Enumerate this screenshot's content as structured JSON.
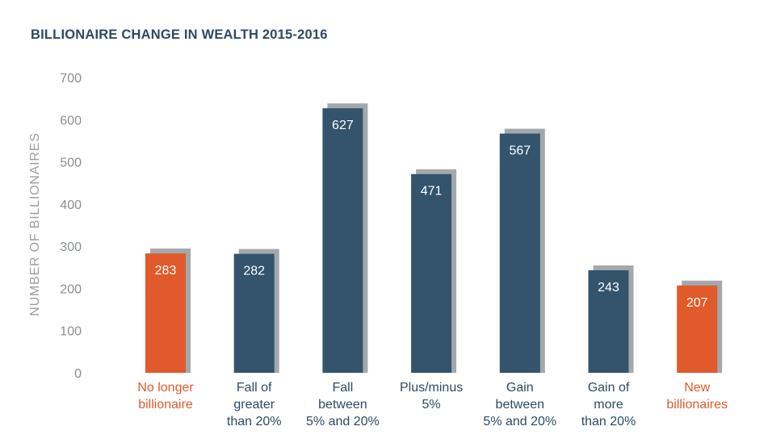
{
  "chart_data": {
    "type": "bar",
    "title": "BILLIONAIRE CHANGE IN WEALTH 2015-2016",
    "ylabel": "NUMBER OF BILLIONAIRES",
    "xlabel": "",
    "ylim": [
      0,
      700
    ],
    "yticks": [
      0,
      100,
      200,
      300,
      400,
      500,
      600,
      700
    ],
    "categories": [
      [
        "No longer",
        "billionaire"
      ],
      [
        "Fall of",
        "greater",
        "than 20%"
      ],
      [
        "Fall",
        "between",
        "5% and 20%"
      ],
      [
        "Plus/minus",
        "5%"
      ],
      [
        "Gain",
        "between",
        "5% and 20%"
      ],
      [
        "Gain of",
        "more",
        "than 20%"
      ],
      [
        "New",
        "billionaires"
      ]
    ],
    "values": [
      283,
      282,
      627,
      471,
      567,
      243,
      207
    ],
    "highlight": [
      true,
      false,
      false,
      false,
      false,
      false,
      true
    ],
    "colors": {
      "primary": "#34536c",
      "highlight": "#e05a2b",
      "shadow": "#a3a8ad",
      "category_text": "#2e4a62",
      "highlight_text": "#e05a2b"
    }
  }
}
